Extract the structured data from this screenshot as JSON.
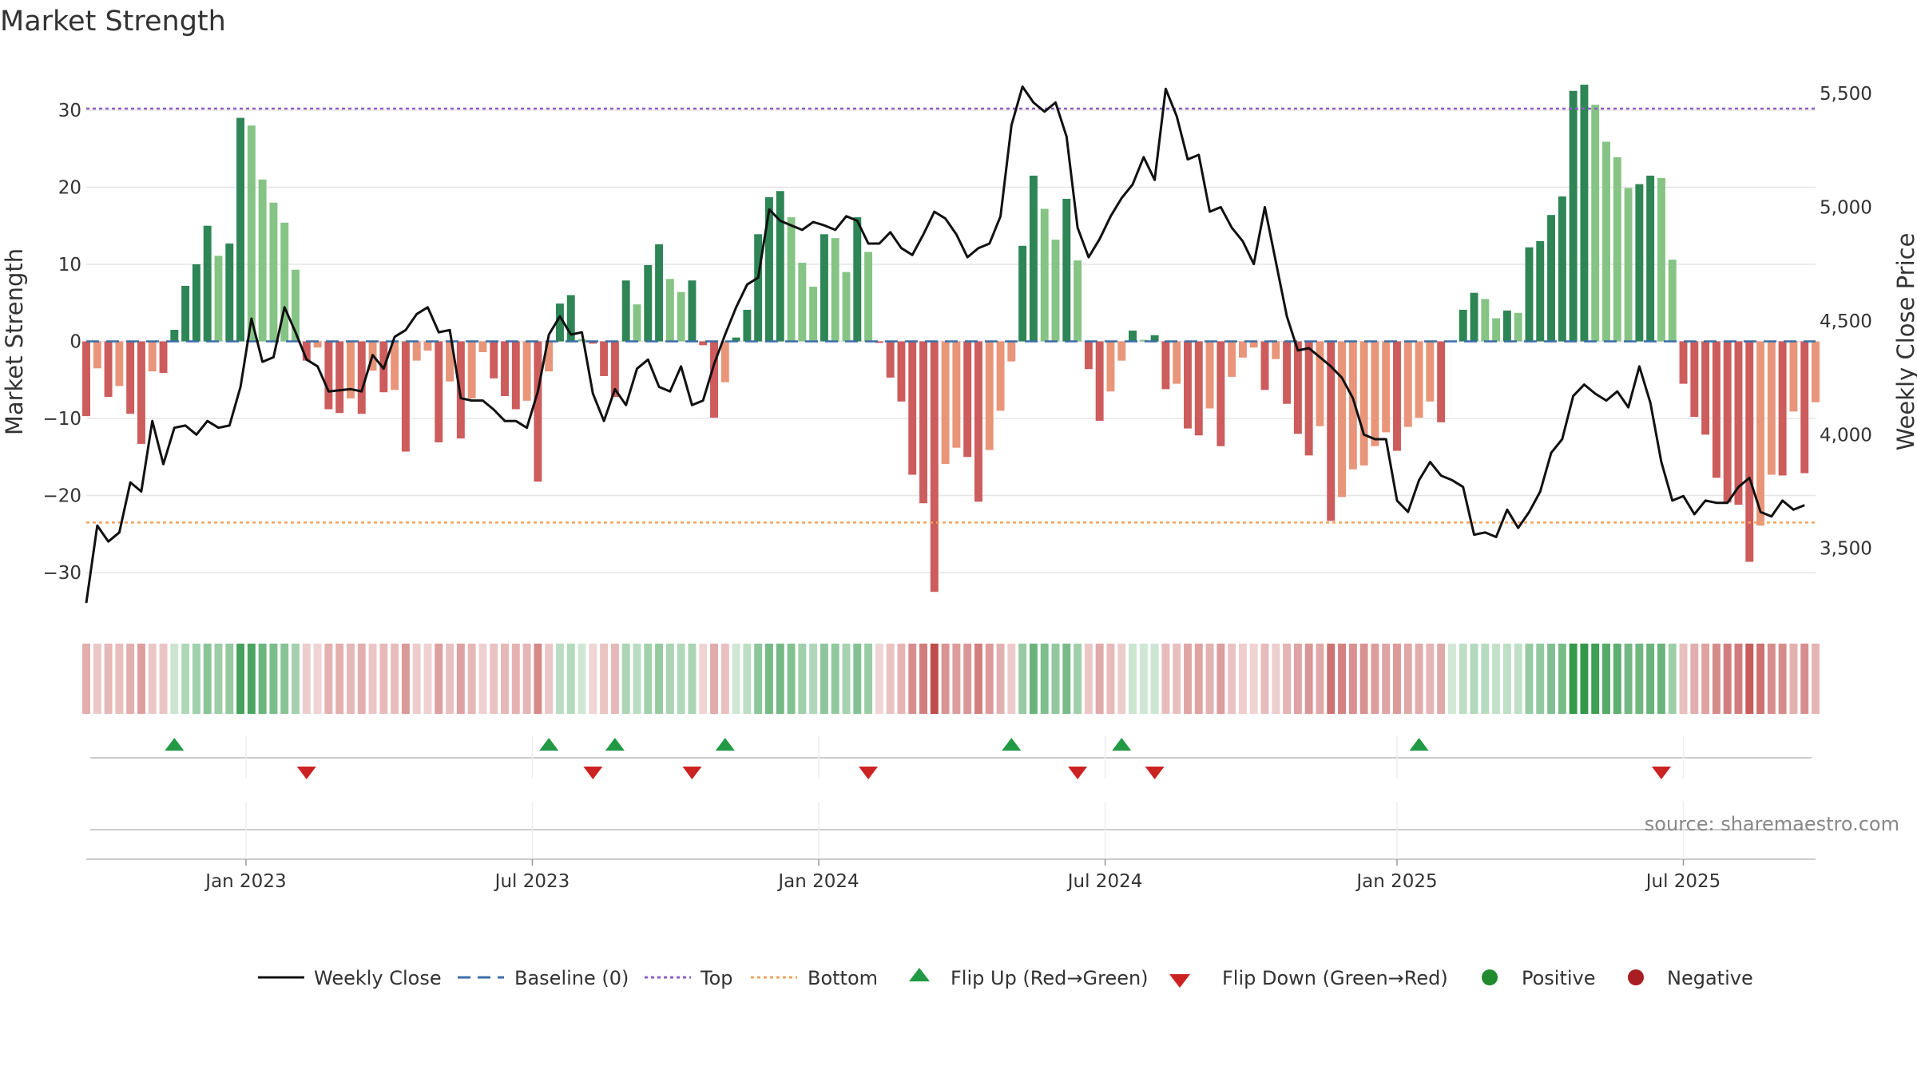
{
  "chart_data": {
    "type": "bar+line",
    "title": "Market Strength",
    "source": "source: sharemaestro.com",
    "ylabel_left": "Market Strength",
    "ylabel_right": "Weekly Close Price",
    "ylim_left": [
      -36,
      36
    ],
    "ylim_right": [
      3190,
      5630
    ],
    "yticks_left": [
      -30,
      -20,
      -10,
      0,
      10,
      20,
      30
    ],
    "yticks_left_labels": [
      "−30",
      "−20",
      "−10",
      "0",
      "10",
      "20",
      "30"
    ],
    "yticks_right": [
      3500,
      4000,
      4500,
      5000,
      5500
    ],
    "yticks_right_labels": [
      "3,500",
      "4,000",
      "4,500",
      "5,000",
      "5,500"
    ],
    "top_level": 30.2,
    "bottom_level": -23.5,
    "x_ticks": [
      {
        "label": "Jan 2023",
        "week": 14.5
      },
      {
        "label": "Jul 2023",
        "week": 40.5
      },
      {
        "label": "Jan 2024",
        "week": 66.5
      },
      {
        "label": "Jul 2024",
        "week": 92.5
      },
      {
        "label": "Jan 2025",
        "week": 119
      },
      {
        "label": "Jul 2025",
        "week": 145
      }
    ],
    "strength": [
      -9.7,
      -3.5,
      -7.2,
      -5.8,
      -9.4,
      -13.3,
      -3.9,
      -4.1,
      1.5,
      7.2,
      10,
      15,
      11.1,
      12.7,
      29,
      28,
      21,
      18,
      15.4,
      9.3,
      -2.5,
      -0.8,
      -8.8,
      -9.3,
      -7.4,
      -9.4,
      -3.8,
      -6.6,
      -6.3,
      -14.3,
      -2.5,
      -1.2,
      -13.1,
      -5.2,
      -12.6,
      -7.4,
      -1.4,
      -4.8,
      -7.1,
      -8.8,
      -7.7,
      -18.2,
      -3.9,
      4.9,
      6,
      0.3,
      -0.3,
      -4.5,
      -7.2,
      7.9,
      4.8,
      9.9,
      12.6,
      8.1,
      6.4,
      7.9,
      -0.5,
      -9.9,
      -5.3,
      0.5,
      4.1,
      13.9,
      18.7,
      19.5,
      16.1,
      10.2,
      7.1,
      13.9,
      13.4,
      9,
      16.1,
      11.6,
      -0.2,
      -4.7,
      -7.8,
      -17.3,
      -21,
      -32.5,
      -15.9,
      -13.8,
      -15,
      -20.8,
      -14.1,
      -9,
      -2.6,
      12.4,
      21.5,
      17.2,
      13.2,
      18.5,
      10.5,
      -3.6,
      -10.3,
      -6.5,
      -2.5,
      1.4,
      0.2,
      0.8,
      -6.2,
      -5.5,
      -11.3,
      -12.2,
      -8.7,
      -13.6,
      -4.6,
      -2.1,
      -0.8,
      -6.3,
      -2.3,
      -8.1,
      -12,
      -14.8,
      -11,
      -23.3,
      -20.2,
      -16.6,
      -16.1,
      -13.6,
      -11.8,
      -14.2,
      -11.1,
      -9.9,
      -7.8,
      -10.5,
      0.1,
      4.1,
      6.3,
      5.5,
      3,
      4,
      3.7,
      12.2,
      13,
      16.4,
      18.8,
      32.5,
      33.3,
      30.7,
      25.9,
      23.9,
      19.9,
      20.4,
      21.5,
      21.2,
      10.6,
      -5.5,
      -9.8,
      -12.1,
      -17.7,
      -20.9,
      -21.2,
      -28.6,
      -23.9,
      -17.3,
      -17.4,
      -9.1,
      -17.1,
      -7.9
    ],
    "weekly_close": [
      3260,
      3600,
      3530,
      3570,
      3790,
      3750,
      4060,
      3870,
      4030,
      4040,
      4000,
      4060,
      4030,
      4040,
      4210,
      4510,
      4320,
      4340,
      4560,
      4450,
      4330,
      4300,
      4190,
      4195,
      4200,
      4190,
      4350,
      4290,
      4430,
      4460,
      4530,
      4560,
      4450,
      4460,
      4160,
      4150,
      4150,
      4110,
      4060,
      4060,
      4030,
      4190,
      4440,
      4520,
      4440,
      4450,
      4180,
      4060,
      4200,
      4130,
      4290,
      4330,
      4210,
      4190,
      4300,
      4130,
      4150,
      4310,
      4440,
      4560,
      4660,
      4690,
      4990,
      4940,
      4920,
      4900,
      4935,
      4920,
      4900,
      4960,
      4940,
      4840,
      4840,
      4890,
      4820,
      4790,
      4880,
      4980,
      4950,
      4880,
      4780,
      4820,
      4840,
      4960,
      5360,
      5530,
      5460,
      5420,
      5460,
      5310,
      4910,
      4780,
      4860,
      4960,
      5040,
      5100,
      5220,
      5120,
      5520,
      5400,
      5210,
      5230,
      4980,
      5000,
      4910,
      4850,
      4750,
      5000,
      4760,
      4520,
      4370,
      4380,
      4340,
      4300,
      4250,
      4160,
      4000,
      3980,
      3980,
      3710,
      3660,
      3800,
      3880,
      3820,
      3800,
      3770,
      3560,
      3570,
      3550,
      3670,
      3590,
      3660,
      3750,
      3920,
      3980,
      4170,
      4220,
      4180,
      4150,
      4190,
      4120,
      4300,
      4140,
      3880,
      3710,
      3730,
      3650,
      3710,
      3700,
      3700,
      3770,
      3810,
      3660,
      3640,
      3710,
      3670,
      3690
    ],
    "flip_up_weeks": [
      8,
      42,
      48,
      58,
      84,
      94,
      121
    ],
    "flip_down_weeks": [
      20,
      46,
      55,
      71,
      90,
      97,
      143
    ],
    "legend": [
      "Weekly Close",
      "Baseline (0)",
      "Top",
      "Bottom",
      "Flip Up (Red→Green)",
      "Flip Down (Green→Red)",
      "Positive",
      "Negative"
    ]
  },
  "colors": {
    "pos_dark": "#2e8555",
    "pos_light": "#86c486",
    "neg_dark": "#cd5c5c",
    "neg_light": "#e8957a",
    "line": "#111111",
    "baseline": "#3a6ea5",
    "top": "#8e5fc4",
    "bottom": "#f0a35e",
    "flip_up": "#229944",
    "flip_down": "#cc2222",
    "positive": "#1f8a2e",
    "negative": "#a81e22",
    "grid": "#e5e5e5"
  }
}
